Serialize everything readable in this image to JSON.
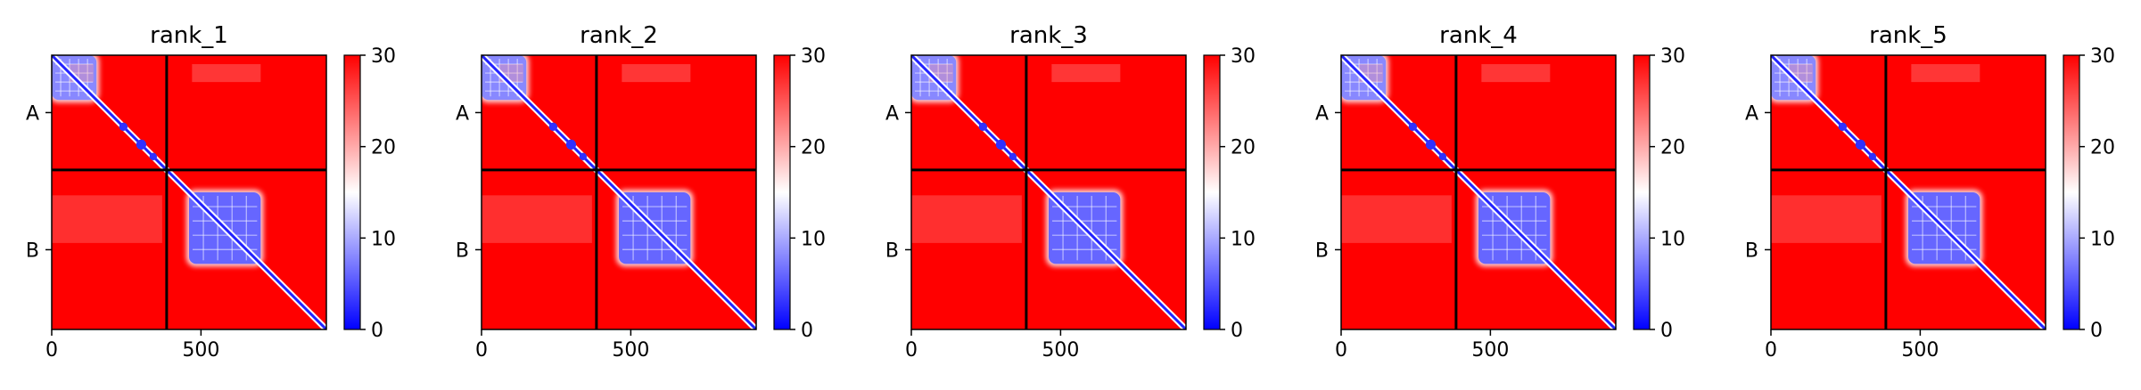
{
  "colors": {
    "high": "#ff0000",
    "mid": "#ffffff",
    "low": "#0000ff",
    "divider": "#000000"
  },
  "chart_data": [
    {
      "type": "heatmap",
      "title": "rank_1",
      "x_ticks": [
        0,
        500
      ],
      "y_tick_labels": [
        "A",
        "B"
      ],
      "chain_boundary": 385,
      "total_length": 920,
      "colorbar": {
        "min": 0,
        "max": 30,
        "ticks": [
          0,
          10,
          20,
          30
        ],
        "colormap": "bwr"
      },
      "blocks": [
        {
          "rows": [
            0,
            150
          ],
          "cols": [
            0,
            150
          ],
          "level": 8
        },
        {
          "rows": [
            460,
            700
          ],
          "cols": [
            460,
            700
          ],
          "level": 6
        }
      ]
    },
    {
      "type": "heatmap",
      "title": "rank_2",
      "x_ticks": [
        0,
        500
      ],
      "y_tick_labels": [
        "A",
        "B"
      ],
      "chain_boundary": 385,
      "total_length": 920,
      "colorbar": {
        "min": 0,
        "max": 30,
        "ticks": [
          0,
          10,
          20,
          30
        ],
        "colormap": "bwr"
      },
      "blocks": [
        {
          "rows": [
            0,
            150
          ],
          "cols": [
            0,
            150
          ],
          "level": 8
        },
        {
          "rows": [
            460,
            700
          ],
          "cols": [
            460,
            700
          ],
          "level": 6
        }
      ]
    },
    {
      "type": "heatmap",
      "title": "rank_3",
      "x_ticks": [
        0,
        500
      ],
      "y_tick_labels": [
        "A",
        "B"
      ],
      "chain_boundary": 385,
      "total_length": 920,
      "colorbar": {
        "min": 0,
        "max": 30,
        "ticks": [
          0,
          10,
          20,
          30
        ],
        "colormap": "bwr"
      },
      "blocks": [
        {
          "rows": [
            0,
            150
          ],
          "cols": [
            0,
            150
          ],
          "level": 8
        },
        {
          "rows": [
            460,
            700
          ],
          "cols": [
            460,
            700
          ],
          "level": 6
        }
      ]
    },
    {
      "type": "heatmap",
      "title": "rank_4",
      "x_ticks": [
        0,
        500
      ],
      "y_tick_labels": [
        "A",
        "B"
      ],
      "chain_boundary": 385,
      "total_length": 920,
      "colorbar": {
        "min": 0,
        "max": 30,
        "ticks": [
          0,
          10,
          20,
          30
        ],
        "colormap": "bwr"
      },
      "blocks": [
        {
          "rows": [
            0,
            150
          ],
          "cols": [
            0,
            150
          ],
          "level": 8
        },
        {
          "rows": [
            460,
            700
          ],
          "cols": [
            460,
            700
          ],
          "level": 6
        }
      ]
    },
    {
      "type": "heatmap",
      "title": "rank_5",
      "x_ticks": [
        0,
        500
      ],
      "y_tick_labels": [
        "A",
        "B"
      ],
      "chain_boundary": 385,
      "total_length": 920,
      "colorbar": {
        "min": 0,
        "max": 30,
        "ticks": [
          0,
          10,
          20,
          30
        ],
        "colormap": "bwr"
      },
      "blocks": [
        {
          "rows": [
            0,
            150
          ],
          "cols": [
            0,
            150
          ],
          "level": 8
        },
        {
          "rows": [
            460,
            700
          ],
          "cols": [
            460,
            700
          ],
          "level": 6
        }
      ]
    }
  ]
}
